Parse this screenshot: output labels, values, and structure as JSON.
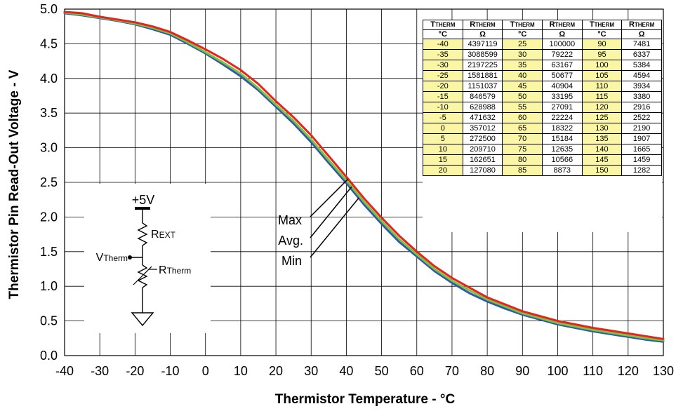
{
  "chart_data": {
    "type": "line",
    "xlabel": "Thermistor Temperature - °C",
    "ylabel": "Thermistor Pin Read-Out Voltage - V",
    "xlim": [
      -40,
      130
    ],
    "ylim": [
      0,
      5
    ],
    "xticks": [
      "-40",
      "-30",
      "-20",
      "-10",
      "0",
      "10",
      "20",
      "30",
      "40",
      "50",
      "60",
      "70",
      "80",
      "90",
      "100",
      "110",
      "120",
      "130"
    ],
    "yticks": [
      "0.0",
      "0.5",
      "1.0",
      "1.5",
      "2.0",
      "2.5",
      "3.0",
      "3.5",
      "4.0",
      "4.5",
      "5.0"
    ],
    "grid": true,
    "colors": {
      "max": "#e8221c",
      "avg": "#7cc242",
      "min": "#2f5aa8"
    },
    "x": [
      -40,
      -35,
      -30,
      -25,
      -20,
      -15,
      -10,
      -5,
      0,
      5,
      10,
      15,
      20,
      25,
      30,
      35,
      40,
      45,
      50,
      55,
      60,
      65,
      70,
      75,
      80,
      85,
      90,
      95,
      100,
      105,
      110,
      115,
      120,
      125,
      130
    ],
    "series": [
      {
        "name": "Max",
        "values": [
          4.96,
          4.94,
          4.89,
          4.85,
          4.81,
          4.75,
          4.67,
          4.55,
          4.42,
          4.28,
          4.12,
          3.92,
          3.67,
          3.44,
          3.18,
          2.88,
          2.58,
          2.27,
          1.99,
          1.73,
          1.5,
          1.29,
          1.12,
          0.98,
          0.84,
          0.74,
          0.64,
          0.57,
          0.5,
          0.45,
          0.4,
          0.36,
          0.32,
          0.28,
          0.24
        ]
      },
      {
        "name": "Avg.",
        "values": [
          4.95,
          4.92,
          4.88,
          4.84,
          4.79,
          4.73,
          4.65,
          4.52,
          4.38,
          4.23,
          4.07,
          3.86,
          3.62,
          3.39,
          3.12,
          2.82,
          2.53,
          2.22,
          1.94,
          1.68,
          1.46,
          1.25,
          1.08,
          0.94,
          0.81,
          0.71,
          0.61,
          0.54,
          0.47,
          0.42,
          0.37,
          0.33,
          0.29,
          0.25,
          0.22
        ]
      },
      {
        "name": "Min",
        "values": [
          4.94,
          4.91,
          4.87,
          4.83,
          4.78,
          4.71,
          4.63,
          4.5,
          4.36,
          4.2,
          4.03,
          3.83,
          3.59,
          3.35,
          3.08,
          2.78,
          2.49,
          2.18,
          1.9,
          1.64,
          1.43,
          1.22,
          1.05,
          0.9,
          0.78,
          0.68,
          0.59,
          0.52,
          0.45,
          0.4,
          0.35,
          0.31,
          0.27,
          0.23,
          0.2
        ]
      }
    ],
    "legend_labels": [
      "Max",
      "Avg.",
      "Min"
    ]
  },
  "resistance_table": {
    "headers": [
      "THERM",
      "THERM"
    ],
    "col_headers": [
      {
        "main": "T",
        "sub": "THERM",
        "unit": "°C"
      },
      {
        "main": "R",
        "sub": "THERM",
        "unit": "Ω"
      },
      {
        "main": "T",
        "sub": "THERM",
        "unit": "°C"
      },
      {
        "main": "R",
        "sub": "THERM",
        "unit": "Ω"
      },
      {
        "main": "T",
        "sub": "THERM",
        "unit": "°C"
      },
      {
        "main": "R",
        "sub": "THERM",
        "unit": "Ω"
      }
    ],
    "rows": [
      [
        "-40",
        "4397119",
        "25",
        "100000",
        "90",
        "7481"
      ],
      [
        "-35",
        "3088599",
        "30",
        "79222",
        "95",
        "6337"
      ],
      [
        "-30",
        "2197225",
        "35",
        "63167",
        "100",
        "5384"
      ],
      [
        "-25",
        "1581881",
        "40",
        "50677",
        "105",
        "4594"
      ],
      [
        "-20",
        "1151037",
        "45",
        "40904",
        "110",
        "3934"
      ],
      [
        "-15",
        "846579",
        "50",
        "33195",
        "115",
        "3380"
      ],
      [
        "-10",
        "628988",
        "55",
        "27091",
        "120",
        "2916"
      ],
      [
        "-5",
        "471632",
        "60",
        "22224",
        "125",
        "2522"
      ],
      [
        "0",
        "357012",
        "65",
        "18322",
        "130",
        "2190"
      ],
      [
        "5",
        "272500",
        "70",
        "15184",
        "135",
        "1907"
      ],
      [
        "10",
        "209710",
        "75",
        "12635",
        "140",
        "1665"
      ],
      [
        "15",
        "162651",
        "80",
        "10566",
        "145",
        "1459"
      ],
      [
        "20",
        "127080",
        "85",
        "8873",
        "150",
        "1282"
      ]
    ],
    "cell_color": "#fbf6a6"
  },
  "circuit": {
    "supply": "+5V",
    "rext_main": "R",
    "rext_sub": "EXT",
    "vtherm_main": "V",
    "vtherm_sub": "Therm",
    "rtherm_main": "R",
    "rtherm_sub": "Therm"
  }
}
